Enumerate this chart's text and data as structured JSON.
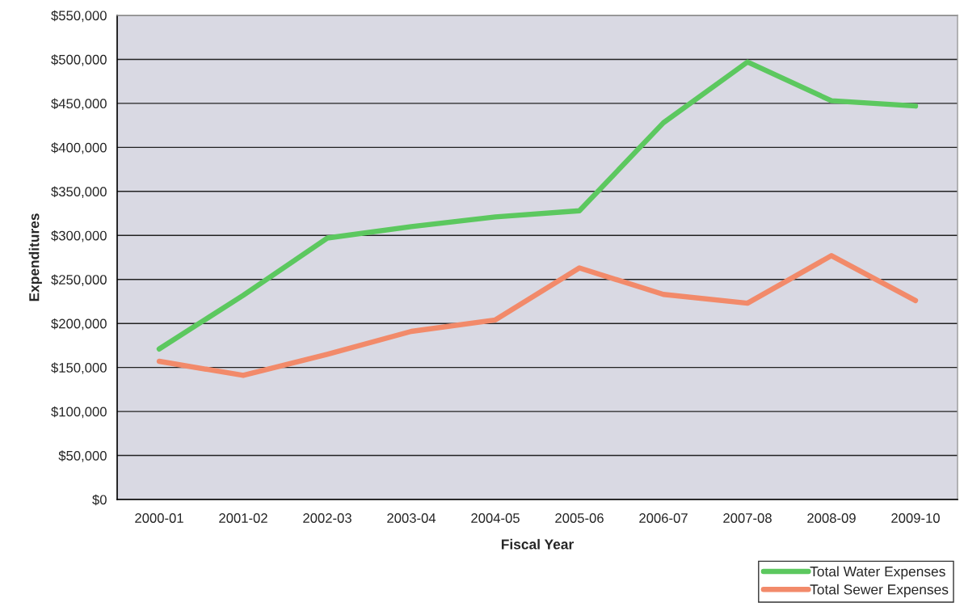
{
  "chart_data": {
    "type": "line",
    "xlabel": "Fiscal Year",
    "ylabel": "Expenditures",
    "categories": [
      "2000-01",
      "2001-02",
      "2002-03",
      "2003-04",
      "2004-05",
      "2005-06",
      "2006-07",
      "2007-08",
      "2008-09",
      "2009-10"
    ],
    "series": [
      {
        "name": "Total Water Expenses",
        "color": "#5cc85f",
        "values": [
          171000,
          232000,
          297000,
          310000,
          321000,
          328000,
          428000,
          497000,
          453000,
          447000
        ]
      },
      {
        "name": "Total Sewer Expenses",
        "color": "#f28a6a",
        "values": [
          157000,
          141000,
          165000,
          191000,
          204000,
          263000,
          233000,
          223000,
          277000,
          226000
        ]
      }
    ],
    "ylim": [
      0,
      550000
    ],
    "yticks": [
      {
        "value": 0,
        "label": "$0"
      },
      {
        "value": 50000,
        "label": "$50,000"
      },
      {
        "value": 100000,
        "label": "$100,000"
      },
      {
        "value": 150000,
        "label": "$150,000"
      },
      {
        "value": 200000,
        "label": "$200,000"
      },
      {
        "value": 250000,
        "label": "$250,000"
      },
      {
        "value": 300000,
        "label": "$300,000"
      },
      {
        "value": 350000,
        "label": "$350,000"
      },
      {
        "value": 400000,
        "label": "$400,000"
      },
      {
        "value": 450000,
        "label": "$450,000"
      },
      {
        "value": 500000,
        "label": "$500,000"
      },
      {
        "value": 550000,
        "label": "$550,000"
      }
    ],
    "grid": "y",
    "legend": "bottom right",
    "line_style": "solid",
    "marker": "none"
  }
}
